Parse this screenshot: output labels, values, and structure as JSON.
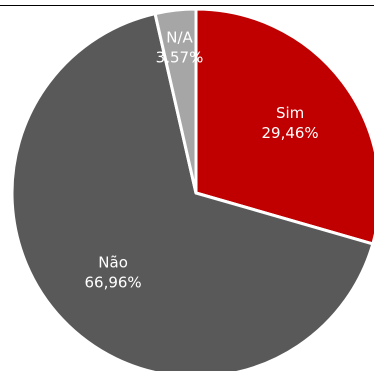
{
  "chart_data": {
    "type": "pie",
    "start_angle_deg": 0,
    "direction": "clockwise",
    "slices": [
      {
        "name": "Sim",
        "value": 29.46,
        "label": "29,46%",
        "color": "#c00000"
      },
      {
        "name": "Não",
        "value": 66.96,
        "label": "66,96%",
        "color": "#595959"
      },
      {
        "name": "N/A",
        "value": 3.57,
        "label": "3,57%",
        "color": "#a6a6a6"
      }
    ]
  }
}
